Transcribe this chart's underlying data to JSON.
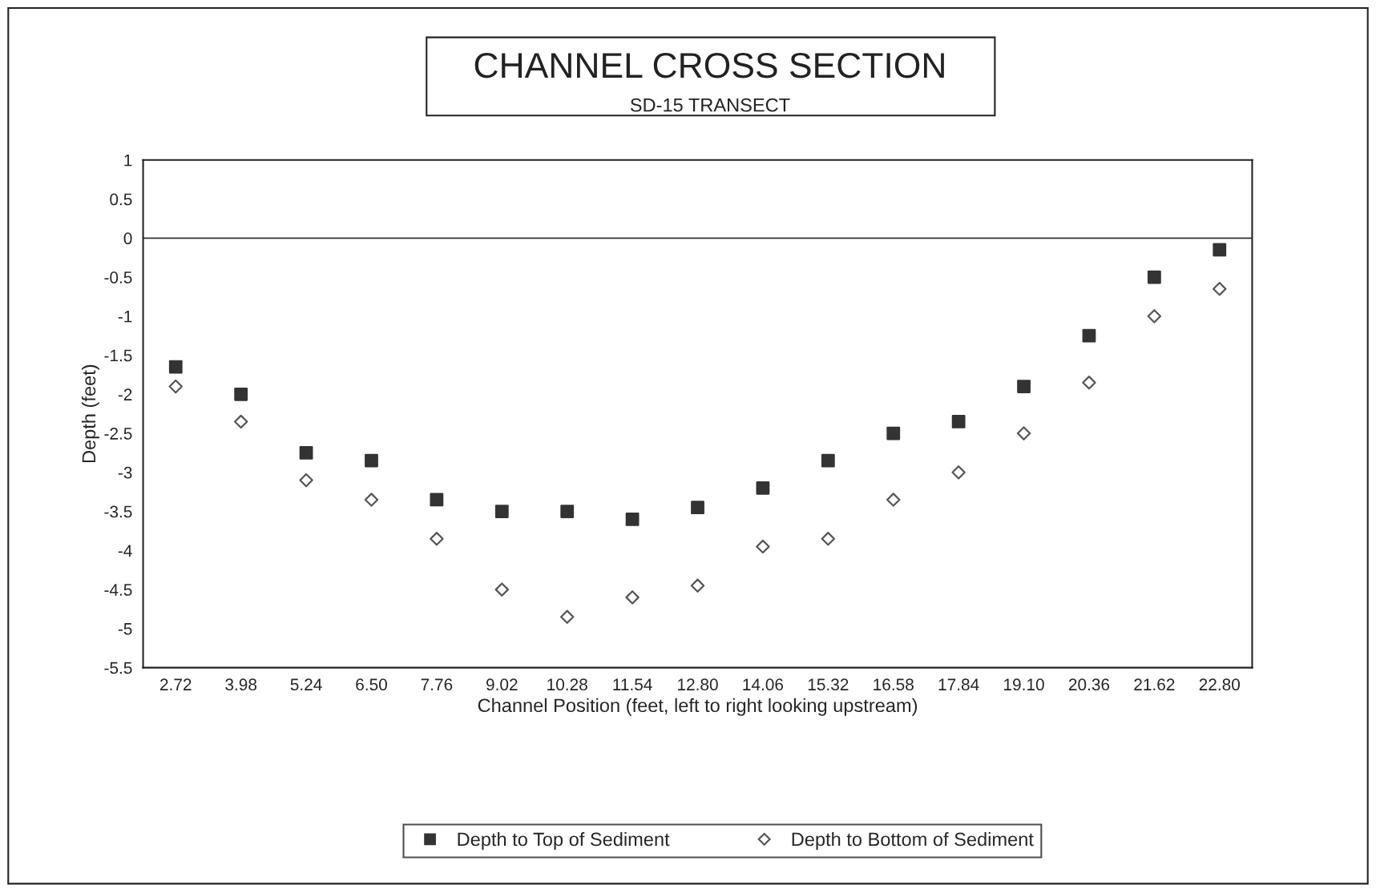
{
  "chart_data": {
    "type": "scatter",
    "title": "CHANNEL CROSS SECTION",
    "subtitle": "SD-15 TRANSECT",
    "xlabel": "Channel Position (feet, left to right looking upstream)",
    "ylabel": "Depth (feet)",
    "categories": [
      "2.72",
      "3.98",
      "5.24",
      "6.50",
      "7.76",
      "9.02",
      "10.28",
      "11.54",
      "12.80",
      "14.06",
      "15.32",
      "16.58",
      "17.84",
      "19.10",
      "20.36",
      "21.62",
      "22.80"
    ],
    "series": [
      {
        "name": "Depth to Top of Sediment",
        "color": "#333333",
        "marker": "square",
        "values": [
          -1.65,
          -2.0,
          -2.75,
          -2.85,
          -3.35,
          -3.5,
          -3.5,
          -3.6,
          -3.45,
          -3.2,
          -2.85,
          -2.5,
          -2.35,
          -1.9,
          -1.25,
          -0.5,
          -0.15
        ]
      },
      {
        "name": "Depth to Bottom of Sediment",
        "color": "#555555",
        "marker": "diamond",
        "values": [
          -1.9,
          -2.35,
          -3.1,
          -3.35,
          -3.85,
          -4.5,
          -4.85,
          -4.6,
          -4.45,
          -3.95,
          -3.85,
          -3.35,
          -3.0,
          -2.5,
          -1.85,
          -1.0,
          -0.65
        ]
      }
    ],
    "ylim": [
      -5.5,
      1
    ],
    "yticks": [
      1,
      0.5,
      0,
      -0.5,
      -1,
      -1.5,
      -2,
      -2.5,
      -3,
      -3.5,
      -4,
      -4.5,
      -5,
      -5.5
    ],
    "ref_lines": [
      {
        "axis": "y",
        "value": 0,
        "color": "#333333"
      }
    ],
    "grid": false,
    "legend": "bottom"
  }
}
